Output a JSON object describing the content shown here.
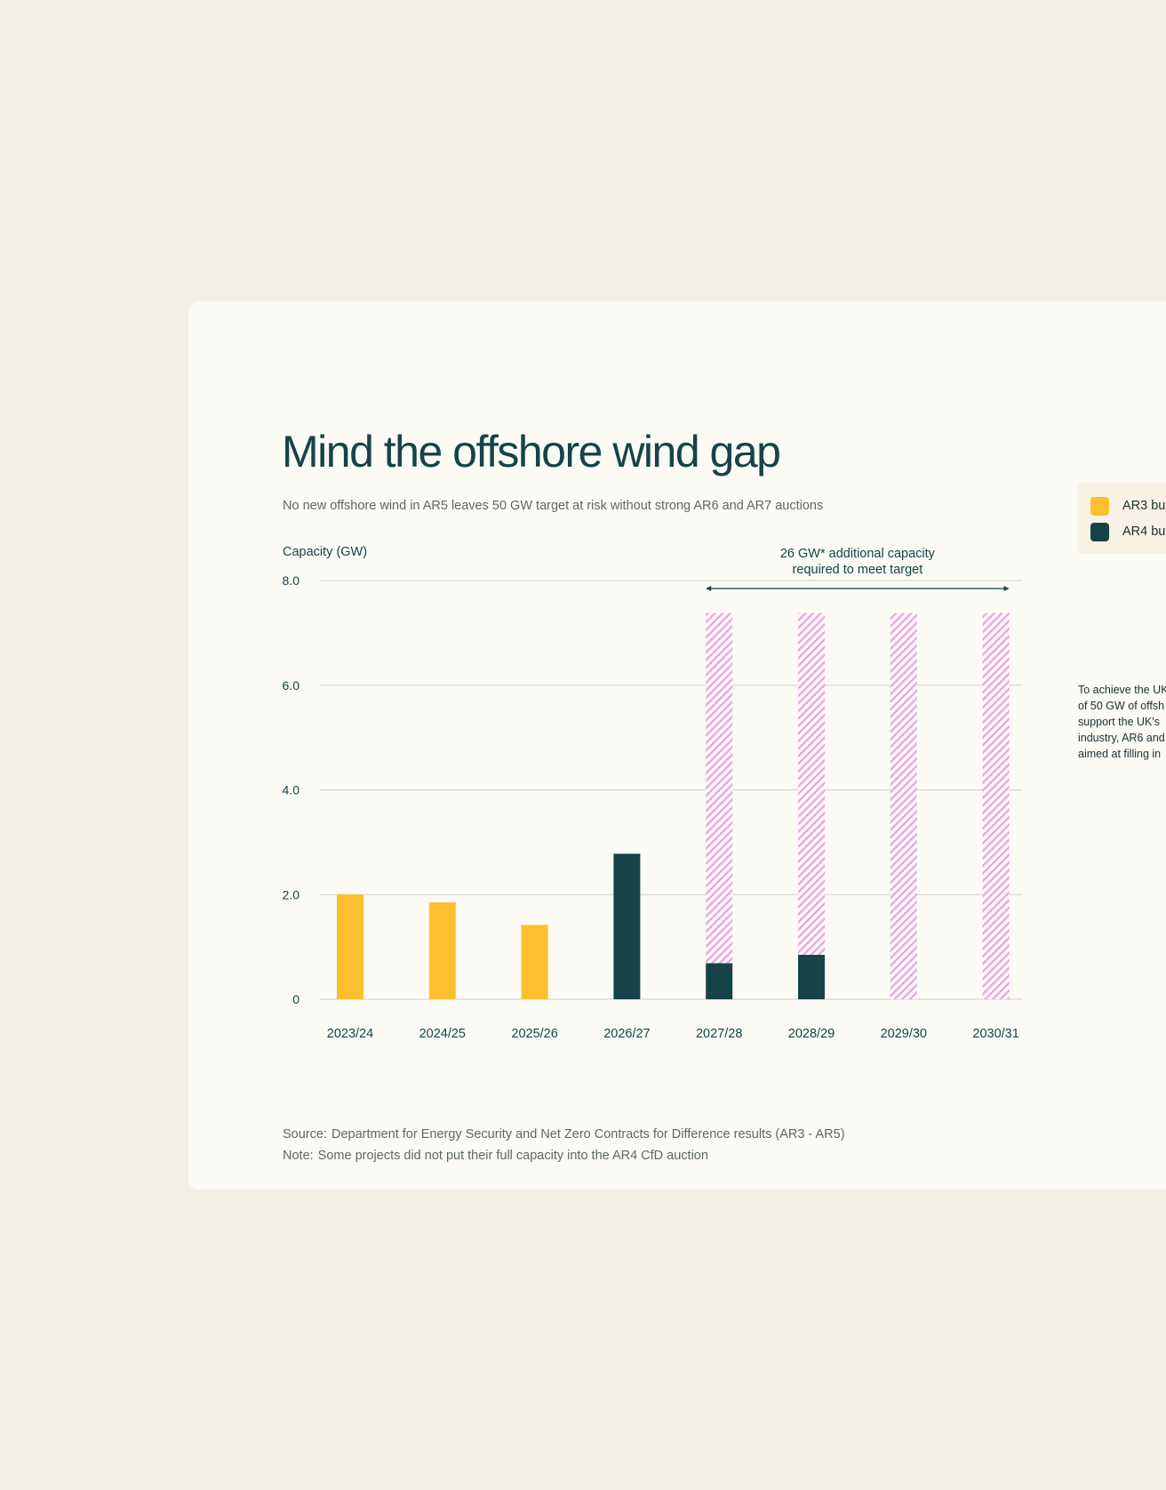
{
  "page": {
    "title": "Mind the offshore wind gap",
    "subtitle": "No new offshore wind in AR5 leaves 50 GW target at risk without strong AR6 and AR7 auctions",
    "source_label": "Source:",
    "source_text": "Department for Energy Security and Net Zero Contracts for Difference results (AR3 - AR5)",
    "note_label": "Note:",
    "note_text": "Some projects did not put their full capacity into the AR4 CfD auction",
    "legend": [
      {
        "label": "AR3 bu",
        "color": "#fdbf2d"
      },
      {
        "label": "AR4 bu",
        "color": "#164348"
      }
    ],
    "side_text": [
      "To achieve the UK",
      "of 50 GW of offsh",
      "support the UK's",
      "industry, AR6 and",
      "aimed at filling in"
    ]
  },
  "chart_data": {
    "type": "bar",
    "ylabel": "Capacity (GW)",
    "ylim": [
      0,
      8
    ],
    "yticks": [
      {
        "value": 0,
        "label": "0"
      },
      {
        "value": 2,
        "label": "2.0"
      },
      {
        "value": 4,
        "label": "4.0"
      },
      {
        "value": 6,
        "label": "6.0"
      },
      {
        "value": 8,
        "label": "8.0"
      }
    ],
    "grid": true,
    "stacked": true,
    "categories": [
      "2023/24",
      "2024/25",
      "2025/26",
      "2026/27",
      "2027/28",
      "2028/29",
      "2029/30",
      "2030/31"
    ],
    "series": [
      {
        "name": "AR3 bu",
        "color": "#fdbf2d",
        "pattern": "solid",
        "values": [
          2.0,
          1.85,
          1.42,
          0,
          0,
          0,
          0,
          0
        ]
      },
      {
        "name": "AR4 bu",
        "color": "#164348",
        "pattern": "solid",
        "values": [
          0,
          0,
          0,
          2.78,
          0.69,
          0.85,
          0,
          0
        ]
      },
      {
        "color": "#ee9ee3",
        "pattern": "hatch",
        "values": [
          0,
          0,
          0,
          0,
          6.69,
          6.53,
          7.38,
          7.38
        ]
      }
    ],
    "annotation": {
      "lines": [
        "26 GW* additional capacity",
        "required to meet target"
      ],
      "from_category": "2027/28",
      "to_category": "2030/31"
    }
  }
}
